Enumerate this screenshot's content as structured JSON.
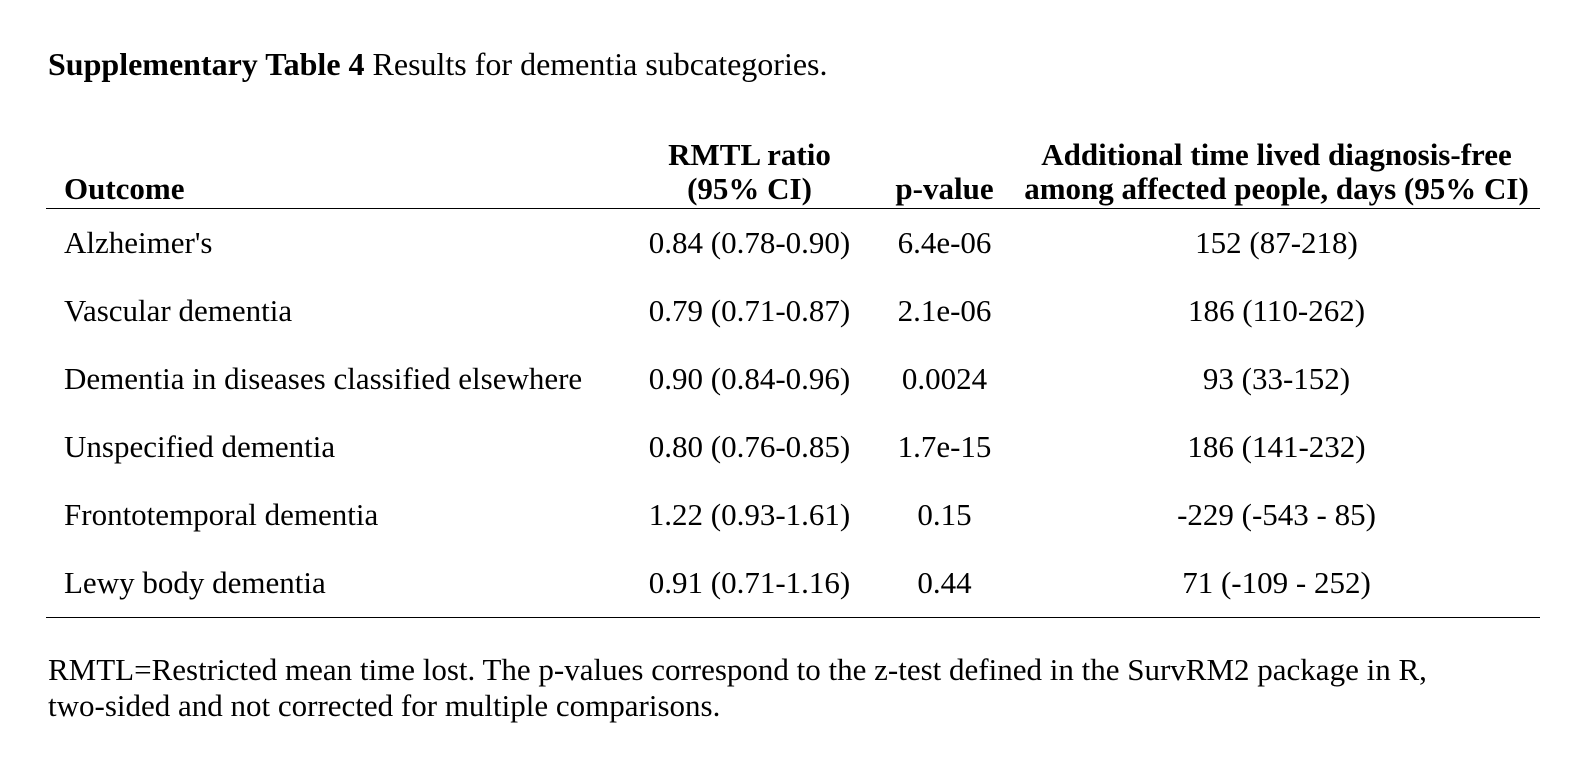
{
  "caption": {
    "label": "Supplementary Table 4",
    "text": " Results for dementia subcategories."
  },
  "table": {
    "headers": {
      "outcome": "Outcome",
      "rmtl_line1": "RMTL ratio",
      "rmtl_line2": "(95% CI)",
      "pvalue": "p-value",
      "additional_line1": "Additional time lived diagnosis-free",
      "additional_line2": "among affected people, days (95% CI)"
    },
    "rows": [
      {
        "outcome": "Alzheimer's",
        "rmtl": "0.84 (0.78-0.90)",
        "pvalue": "6.4e-06",
        "additional": "152 (87-218)"
      },
      {
        "outcome": "Vascular dementia",
        "rmtl": "0.79 (0.71-0.87)",
        "pvalue": "2.1e-06",
        "additional": "186 (110-262)"
      },
      {
        "outcome": "Dementia in diseases classified elsewhere",
        "rmtl": "0.90 (0.84-0.96)",
        "pvalue": "0.0024",
        "additional": "93 (33-152)"
      },
      {
        "outcome": "Unspecified dementia",
        "rmtl": "0.80 (0.76-0.85)",
        "pvalue": "1.7e-15",
        "additional": "186 (141-232)"
      },
      {
        "outcome": "Frontotemporal dementia",
        "rmtl": "1.22 (0.93-1.61)",
        "pvalue": "0.15",
        "additional": "-229 (-543 - 85)"
      },
      {
        "outcome": "Lewy body dementia",
        "rmtl": "0.91 (0.71-1.16)",
        "pvalue": "0.44",
        "additional": "71 (-109 - 252)"
      }
    ]
  },
  "footnote": {
    "line1": "RMTL=Restricted mean time lost. The p-values correspond to the z-test defined in the SurvRM2 package in R,",
    "line2": "two-sided and not corrected for multiple comparisons."
  }
}
